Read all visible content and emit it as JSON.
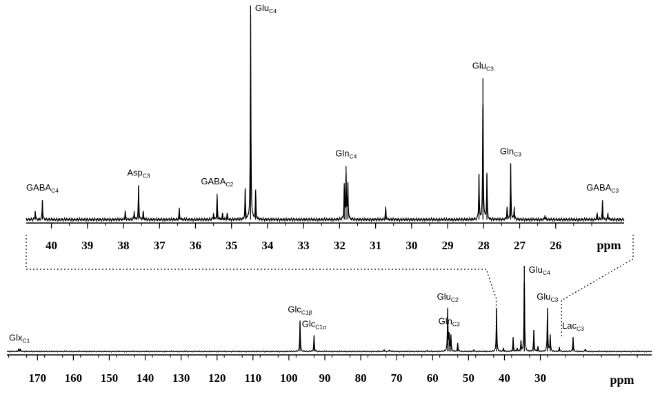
{
  "chart_data": [
    {
      "type": "line",
      "panel": "expanded",
      "xlim": [
        40.7,
        24.1
      ],
      "x_reversed": true,
      "xticks": [
        40,
        39,
        38,
        37,
        36,
        35,
        34,
        33,
        32,
        31,
        30,
        29,
        28,
        27,
        26
      ],
      "xunit": "ppm",
      "y_relative": true,
      "peaks": [
        {
          "x": 40.45,
          "y": 0.04
        },
        {
          "x": 40.25,
          "y": 0.09
        },
        {
          "x": 37.95,
          "y": 0.04
        },
        {
          "x": 37.7,
          "y": 0.04
        },
        {
          "x": 37.58,
          "y": 0.16
        },
        {
          "x": 37.45,
          "y": 0.04
        },
        {
          "x": 36.45,
          "y": 0.05
        },
        {
          "x": 35.5,
          "y": 0.03
        },
        {
          "x": 35.4,
          "y": 0.12
        },
        {
          "x": 35.25,
          "y": 0.03
        },
        {
          "x": 35.12,
          "y": 0.03
        },
        {
          "x": 34.62,
          "y": 0.14
        },
        {
          "x": 34.47,
          "y": 1.0
        },
        {
          "x": 34.33,
          "y": 0.14
        },
        {
          "x": 31.87,
          "y": 0.17
        },
        {
          "x": 31.82,
          "y": 0.25
        },
        {
          "x": 31.77,
          "y": 0.17
        },
        {
          "x": 30.72,
          "y": 0.06
        },
        {
          "x": 28.13,
          "y": 0.21
        },
        {
          "x": 28.02,
          "y": 0.66
        },
        {
          "x": 27.91,
          "y": 0.21
        },
        {
          "x": 27.35,
          "y": 0.06
        },
        {
          "x": 27.25,
          "y": 0.26
        },
        {
          "x": 27.15,
          "y": 0.06
        },
        {
          "x": 26.3,
          "y": 0.02
        },
        {
          "x": 24.85,
          "y": 0.03
        },
        {
          "x": 24.7,
          "y": 0.09
        },
        {
          "x": 24.55,
          "y": 0.03
        }
      ],
      "annotations": [
        {
          "name": "GABA",
          "sub": "C4",
          "x": 40.25
        },
        {
          "name": "Asp",
          "sub": "C3",
          "x": 37.58
        },
        {
          "name": "GABA",
          "sub": "C2",
          "x": 35.4
        },
        {
          "name": "Glu",
          "sub": "C4",
          "x": 34.47
        },
        {
          "name": "Gln",
          "sub": "C4",
          "x": 31.82
        },
        {
          "name": "Glu",
          "sub": "C3",
          "x": 28.02
        },
        {
          "name": "Gln",
          "sub": "C3",
          "x": 27.25
        },
        {
          "name": "GABA",
          "sub": "C3",
          "x": 24.7
        }
      ]
    },
    {
      "type": "line",
      "panel": "full",
      "xlim": [
        178.5,
        -1
      ],
      "x_reversed": true,
      "xticks": [
        170,
        160,
        150,
        140,
        130,
        120,
        110,
        100,
        90,
        80,
        70,
        60,
        50,
        40,
        30
      ],
      "xunit": "ppm",
      "y_relative": true,
      "peaks": [
        {
          "x": 175.2,
          "y": 0.03
        },
        {
          "x": 174.8,
          "y": 0.03
        },
        {
          "x": 96.9,
          "y": 0.36
        },
        {
          "x": 93.0,
          "y": 0.19
        },
        {
          "x": 73.5,
          "y": 0.02
        },
        {
          "x": 72.0,
          "y": 0.02
        },
        {
          "x": 61.5,
          "y": 0.01
        },
        {
          "x": 55.8,
          "y": 0.51
        },
        {
          "x": 55.4,
          "y": 0.22
        },
        {
          "x": 54.9,
          "y": 0.2
        },
        {
          "x": 53.0,
          "y": 0.1
        },
        {
          "x": 48.5,
          "y": 0.02
        },
        {
          "x": 42.2,
          "y": 0.5
        },
        {
          "x": 40.25,
          "y": 0.04
        },
        {
          "x": 37.58,
          "y": 0.16
        },
        {
          "x": 36.45,
          "y": 0.04
        },
        {
          "x": 35.4,
          "y": 0.12
        },
        {
          "x": 34.47,
          "y": 1.0
        },
        {
          "x": 31.82,
          "y": 0.25
        },
        {
          "x": 30.7,
          "y": 0.06
        },
        {
          "x": 28.02,
          "y": 0.51
        },
        {
          "x": 27.25,
          "y": 0.2
        },
        {
          "x": 24.7,
          "y": 0.05
        },
        {
          "x": 20.9,
          "y": 0.17
        },
        {
          "x": 17.5,
          "y": 0.03
        }
      ],
      "annotations": [
        {
          "name": "Glx",
          "sub": "C1",
          "x": 175.0
        },
        {
          "name": "Glc",
          "sub": "C1β",
          "x": 96.9
        },
        {
          "name": "Glc",
          "sub": "C1α",
          "x": 93.0
        },
        {
          "name": "Glu",
          "sub": "C2",
          "x": 55.8
        },
        {
          "name": "Gln",
          "sub": "C3",
          "x": 55.4
        },
        {
          "name": "Glu",
          "sub": "C4",
          "x": 34.47
        },
        {
          "name": "Glu",
          "sub": "C3",
          "x": 28.02
        },
        {
          "name": "Lac",
          "sub": "C3",
          "x": 20.9
        }
      ],
      "zoom_region": [
        42.3,
        24.1
      ]
    }
  ]
}
